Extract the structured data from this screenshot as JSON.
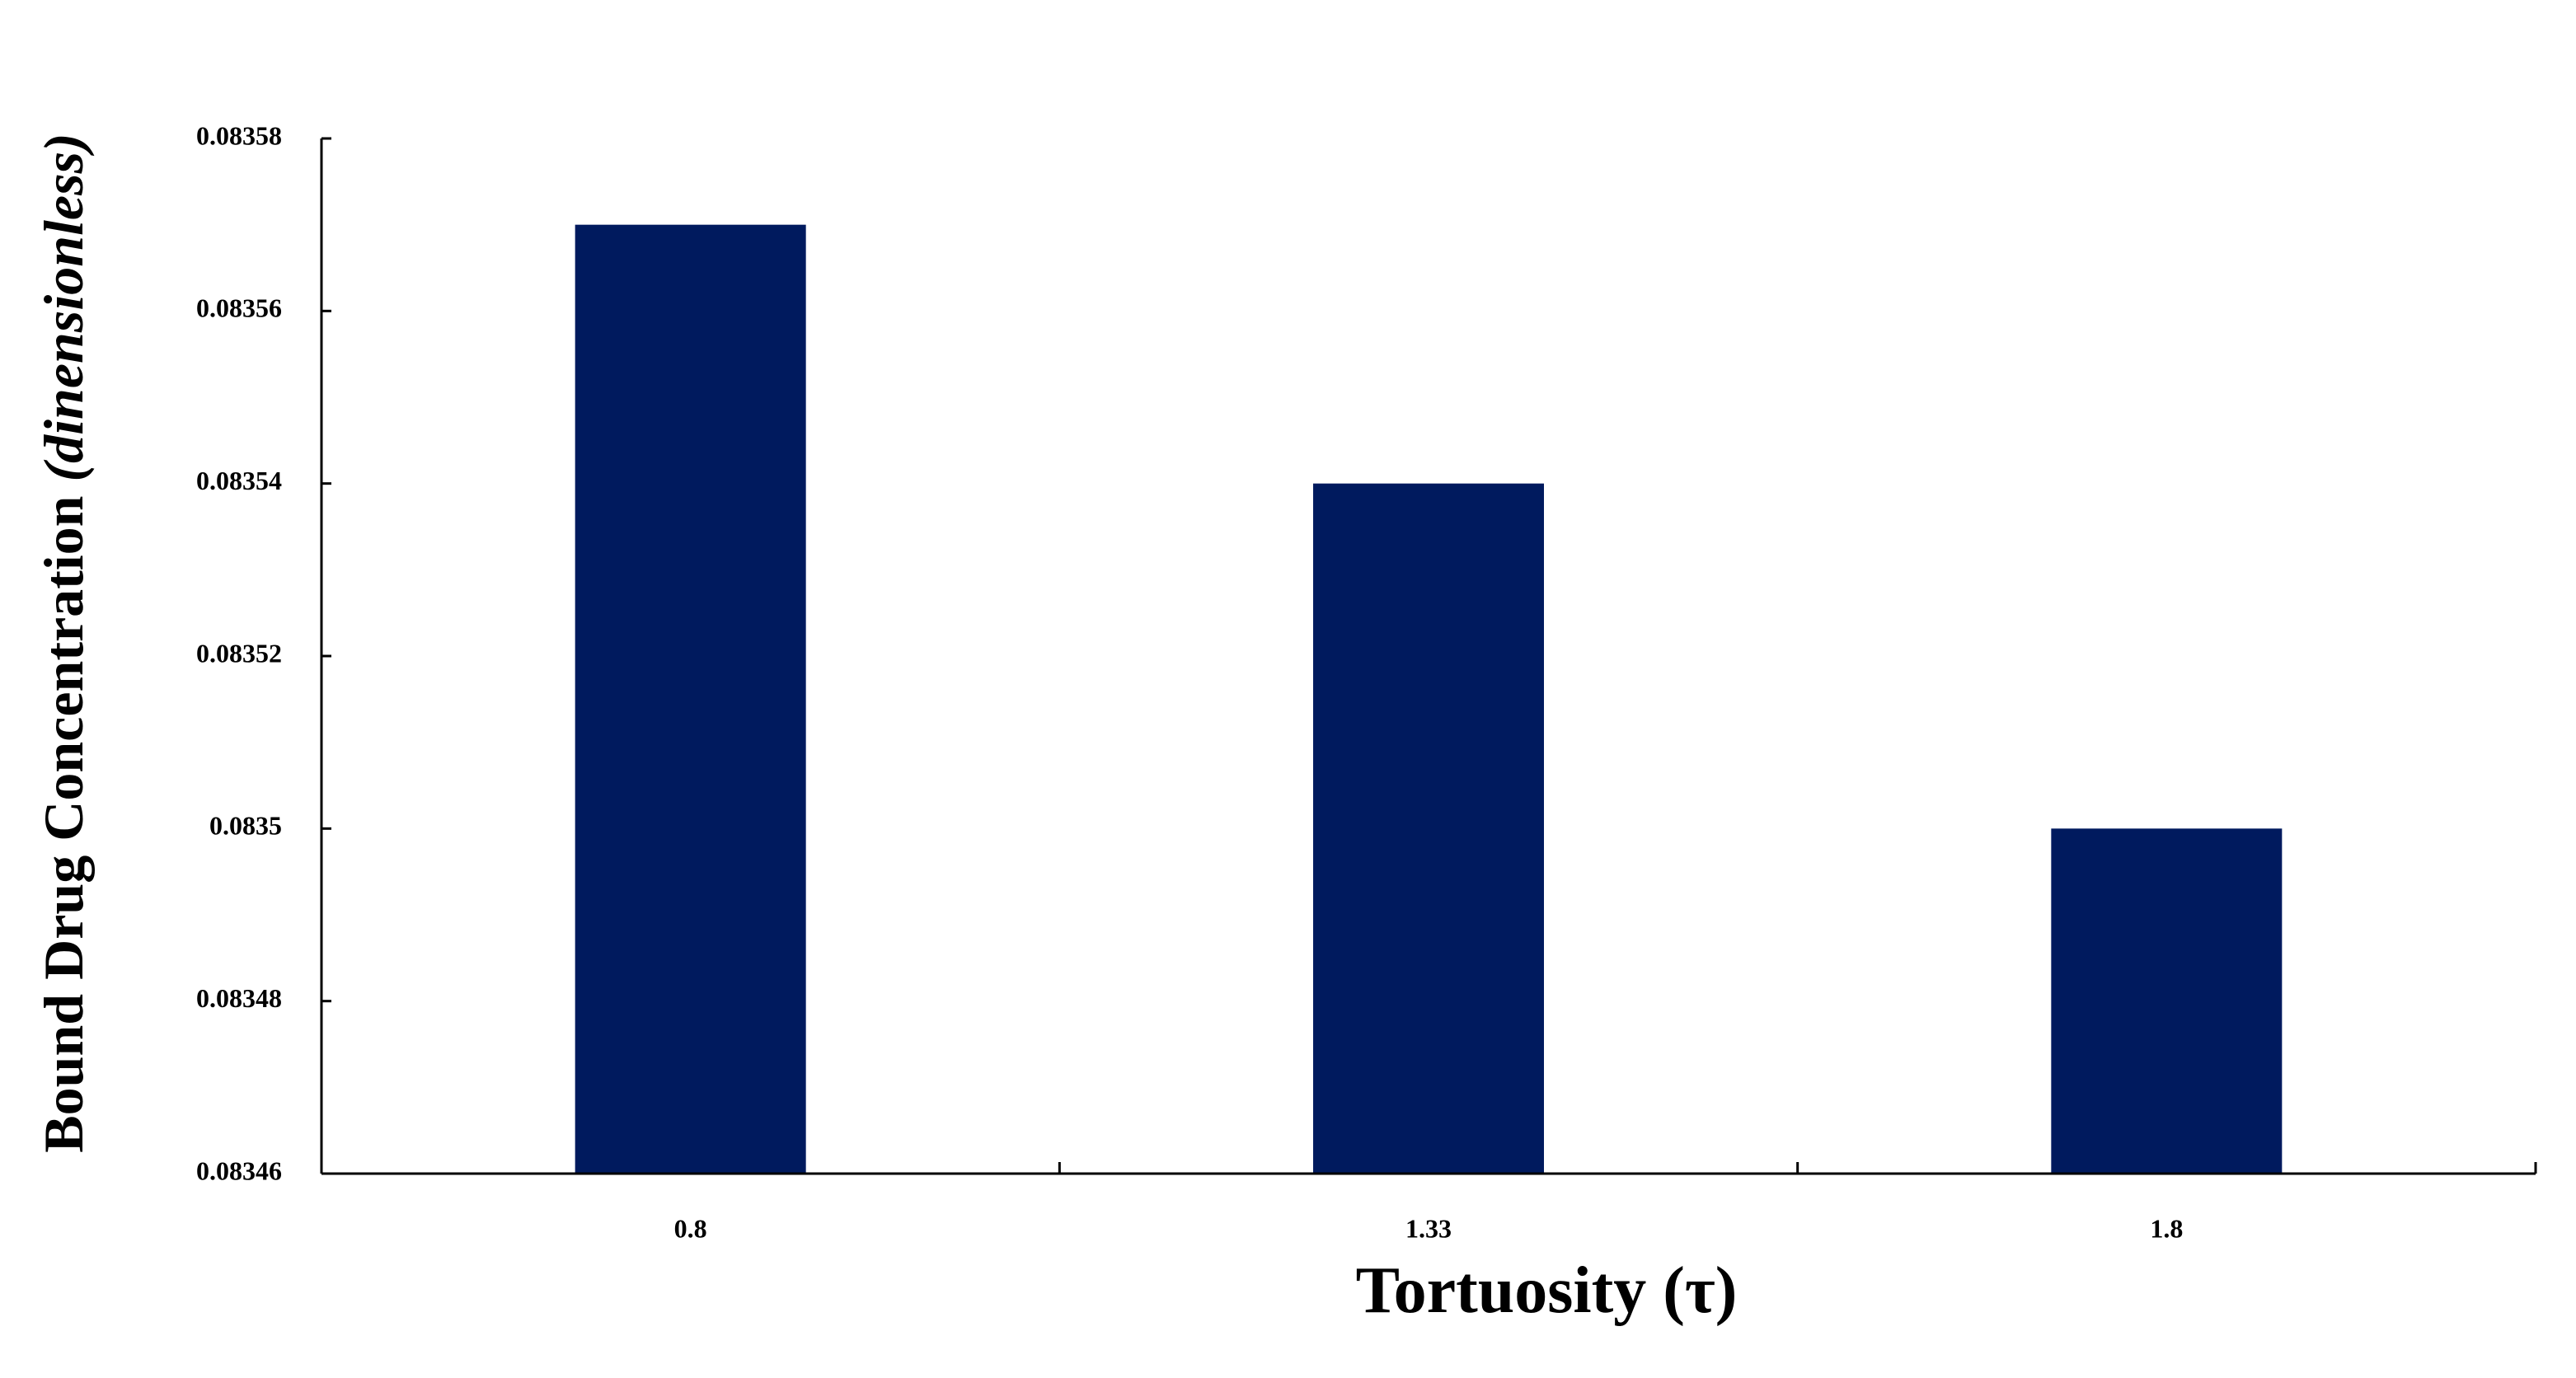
{
  "chart_data": {
    "type": "bar",
    "x_label": "Tortuosity (τ)",
    "y_label": "Bound Drug Concentration",
    "y_label_unit": "(dinensionless)",
    "categories": [
      "0.8",
      "1.33",
      "1.8"
    ],
    "values": [
      0.08357,
      0.08354,
      0.0835
    ],
    "color": "#001a5e",
    "ylim": [
      0.08346,
      0.08358
    ],
    "yticks": [
      0.08346,
      0.08348,
      0.0835,
      0.08352,
      0.08354,
      0.08356,
      0.08358
    ]
  }
}
